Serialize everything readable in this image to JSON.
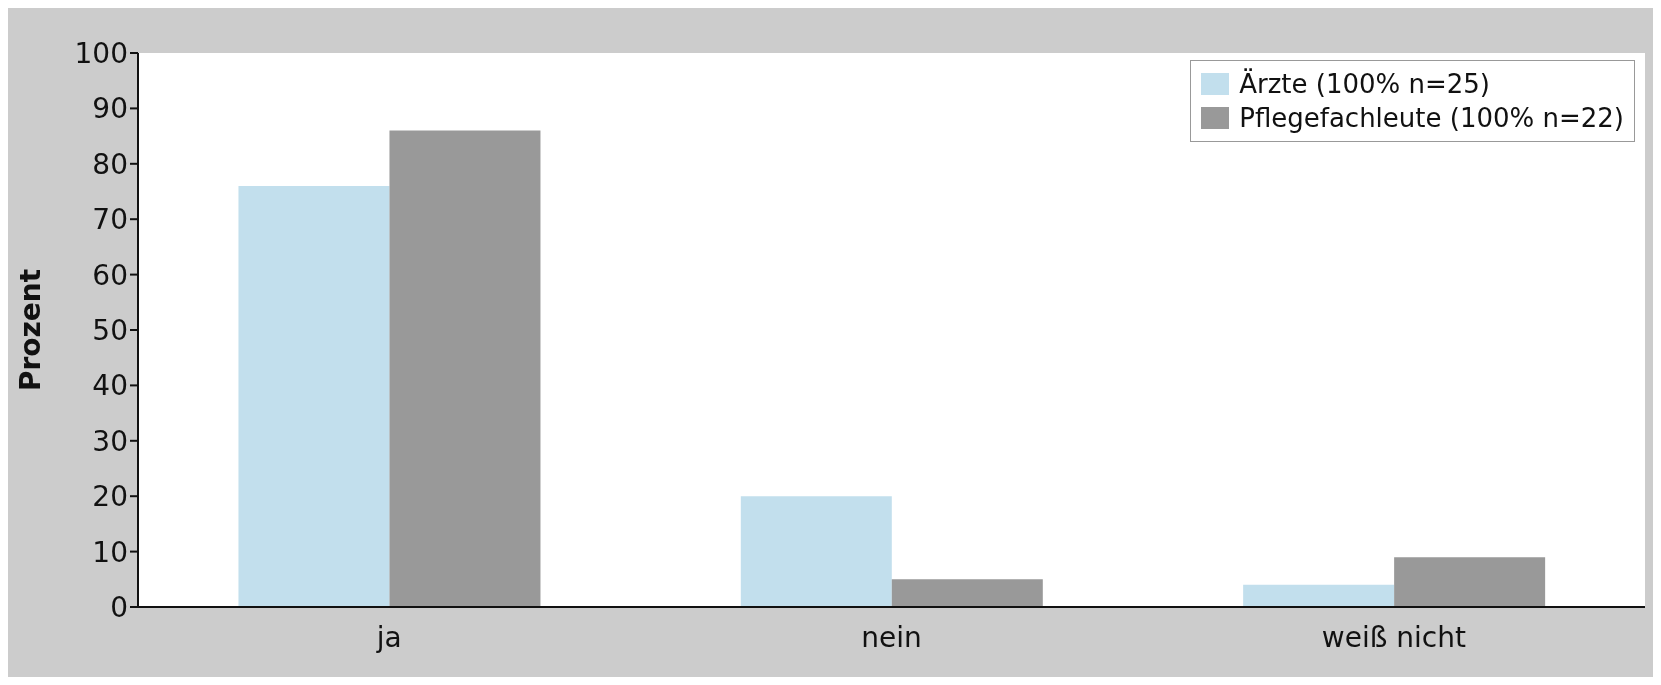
{
  "chart_data": {
    "type": "bar",
    "ylabel": "Prozent",
    "categories": [
      "ja",
      "nein",
      "weiß nicht"
    ],
    "series": [
      {
        "name": "Ärzte (100% n=25)",
        "color": "#c2dfed",
        "values": [
          76,
          20,
          4
        ]
      },
      {
        "name": "Pflegefachleute (100% n=22)",
        "color": "#999999",
        "values": [
          86,
          5,
          9
        ]
      }
    ],
    "ylim": [
      0,
      100
    ],
    "yticks": [
      0,
      10,
      20,
      30,
      40,
      50,
      60,
      70,
      80,
      90,
      100
    ],
    "legend": "top right"
  }
}
